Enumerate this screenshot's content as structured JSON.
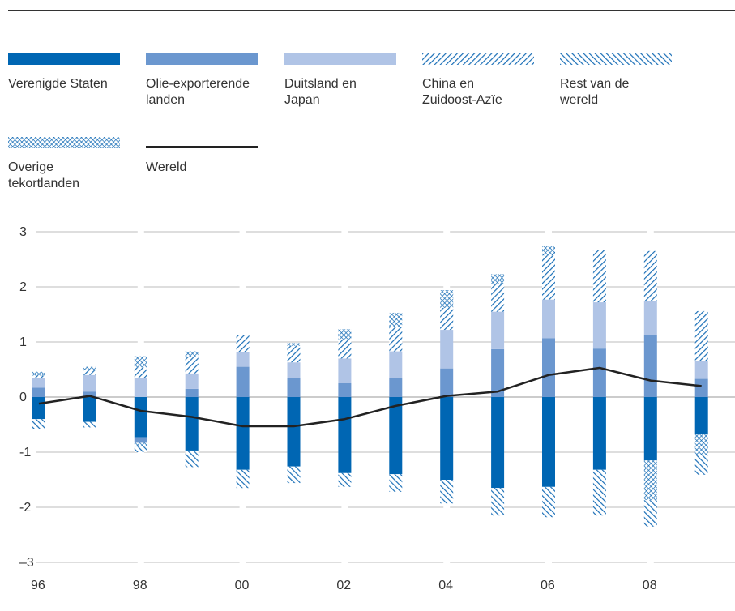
{
  "legend": [
    {
      "key": "us",
      "label_lines": [
        "Verenigde Staten"
      ],
      "fill": "#0066b3",
      "pattern": "solid"
    },
    {
      "key": "oil",
      "label_lines": [
        "Olie-exporterende",
        "landen"
      ],
      "fill": "#6b97cf",
      "pattern": "solid"
    },
    {
      "key": "dejp",
      "label_lines": [
        "Duitsland en",
        "Japan"
      ],
      "fill": "#b0c4e6",
      "pattern": "solid"
    },
    {
      "key": "china",
      "label_lines": [
        "China en",
        "Zuidoost-Azïe"
      ],
      "fill": "#1a6fb7",
      "pattern": "hatch-right"
    },
    {
      "key": "rest",
      "label_lines": [
        "Rest van de",
        "wereld"
      ],
      "fill": "#1a6fb7",
      "pattern": "hatch-left"
    },
    {
      "key": "other",
      "label_lines": [
        "Overige",
        "tekortlanden"
      ],
      "fill": "#1a6fb7",
      "pattern": "crosshatch"
    },
    {
      "key": "world",
      "label_lines": [
        "Wereld"
      ],
      "fill": "#222222",
      "pattern": "line"
    }
  ],
  "chart_data": {
    "type": "bar",
    "subtype": "stacked-bar-with-line",
    "x": [
      1996,
      1997,
      1998,
      1999,
      2000,
      2001,
      2002,
      2003,
      2004,
      2005,
      2006,
      2007,
      2008,
      2009
    ],
    "x_tick_labels": [
      "96",
      "98",
      "00",
      "02",
      "04",
      "06",
      "08"
    ],
    "x_tick_years": [
      1996,
      1998,
      2000,
      2002,
      2004,
      2006,
      2008
    ],
    "y_ticks": [
      3,
      2,
      1,
      0,
      -1,
      -2,
      -3
    ],
    "y_tick_labels": [
      "3",
      "2",
      "1",
      "0",
      "-1",
      "-2",
      "–3"
    ],
    "ylim": [
      -3,
      3
    ],
    "grid": true,
    "legend_position": "top",
    "positive_stack": [
      {
        "name": "Olie-exporterende landen",
        "values": [
          0.17,
          0.1,
          0.0,
          0.15,
          0.55,
          0.35,
          0.25,
          0.35,
          0.52,
          0.87,
          1.07,
          0.88,
          1.12,
          0.33
        ]
      },
      {
        "name": "Duitsland en Japan",
        "values": [
          0.17,
          0.3,
          0.34,
          0.28,
          0.27,
          0.28,
          0.45,
          0.48,
          0.7,
          0.68,
          0.7,
          0.84,
          0.63,
          0.33
        ]
      },
      {
        "name": "China en Zuidoost-Azïe",
        "values": [
          0.05,
          0.1,
          0.2,
          0.3,
          0.3,
          0.3,
          0.35,
          0.45,
          0.4,
          0.5,
          0.8,
          0.95,
          0.9,
          0.9
        ]
      },
      {
        "name": "Overige tekortlanden",
        "values": [
          0.07,
          0.05,
          0.2,
          0.1,
          0.0,
          0.05,
          0.18,
          0.25,
          0.32,
          0.18,
          0.18,
          0.0,
          0.0,
          0.0
        ]
      }
    ],
    "negative_stack": [
      {
        "name": "Verenigde Staten",
        "values": [
          -0.4,
          -0.45,
          -0.73,
          -0.97,
          -1.32,
          -1.26,
          -1.38,
          -1.4,
          -1.5,
          -1.65,
          -1.63,
          -1.32,
          -1.15,
          -0.68
        ]
      },
      {
        "name": "Olie-exporterende landen",
        "values": [
          0.0,
          0.0,
          -0.1,
          0.0,
          0.0,
          0.0,
          0.0,
          0.0,
          0.0,
          0.0,
          0.0,
          0.0,
          0.0,
          0.0
        ]
      },
      {
        "name": "Overige tekortlanden",
        "values": [
          0.0,
          0.0,
          -0.07,
          0.0,
          0.0,
          0.0,
          0.0,
          0.0,
          0.0,
          0.0,
          0.0,
          0.0,
          -0.72,
          -0.38
        ]
      },
      {
        "name": "Rest van de wereld",
        "values": [
          -0.18,
          -0.1,
          -0.1,
          -0.3,
          -0.33,
          -0.3,
          -0.25,
          -0.32,
          -0.43,
          -0.5,
          -0.55,
          -0.83,
          -0.48,
          -0.35
        ]
      }
    ],
    "line": {
      "name": "Wereld",
      "values": [
        -0.12,
        0.02,
        -0.25,
        -0.36,
        -0.53,
        -0.53,
        -0.4,
        -0.16,
        0.02,
        0.1,
        0.4,
        0.53,
        0.3,
        0.2
      ]
    }
  }
}
